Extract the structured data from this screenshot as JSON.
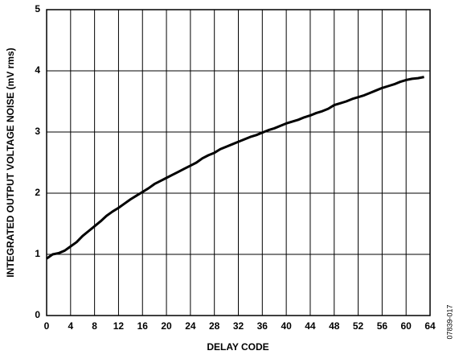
{
  "chart_data": {
    "type": "line",
    "xlabel": "DELAY CODE",
    "ylabel": "INTEGRATED OUTPUT VOLTAGE NOISE (mV rms)",
    "note": "07839-017",
    "x": [
      0,
      1,
      2,
      3,
      4,
      5,
      6,
      7,
      8,
      9,
      10,
      11,
      12,
      13,
      14,
      15,
      16,
      17,
      18,
      19,
      20,
      21,
      22,
      23,
      24,
      25,
      26,
      27,
      28,
      29,
      30,
      31,
      32,
      33,
      34,
      35,
      36,
      37,
      38,
      39,
      40,
      41,
      42,
      43,
      44,
      45,
      46,
      47,
      48,
      49,
      50,
      51,
      52,
      53,
      54,
      55,
      56,
      57,
      58,
      59,
      60,
      61,
      62,
      63
    ],
    "series": [
      {
        "color": "#000000",
        "values": [
          0.93,
          1.0,
          1.02,
          1.06,
          1.13,
          1.2,
          1.3,
          1.38,
          1.46,
          1.54,
          1.63,
          1.7,
          1.76,
          1.83,
          1.9,
          1.96,
          2.02,
          2.08,
          2.15,
          2.2,
          2.25,
          2.3,
          2.35,
          2.4,
          2.45,
          2.5,
          2.57,
          2.62,
          2.66,
          2.72,
          2.76,
          2.8,
          2.84,
          2.88,
          2.92,
          2.95,
          2.99,
          3.03,
          3.06,
          3.1,
          3.14,
          3.17,
          3.2,
          3.24,
          3.27,
          3.31,
          3.34,
          3.38,
          3.44,
          3.47,
          3.5,
          3.54,
          3.57,
          3.6,
          3.64,
          3.68,
          3.72,
          3.75,
          3.78,
          3.82,
          3.85,
          3.87,
          3.88,
          3.9
        ]
      }
    ],
    "xlim": [
      0,
      64
    ],
    "xticks": [
      0,
      4,
      8,
      12,
      16,
      20,
      24,
      28,
      32,
      36,
      40,
      44,
      48,
      52,
      56,
      60,
      64
    ],
    "ylim": [
      0,
      5
    ],
    "yticks": [
      0,
      1,
      2,
      3,
      4,
      5
    ],
    "grid": true
  }
}
